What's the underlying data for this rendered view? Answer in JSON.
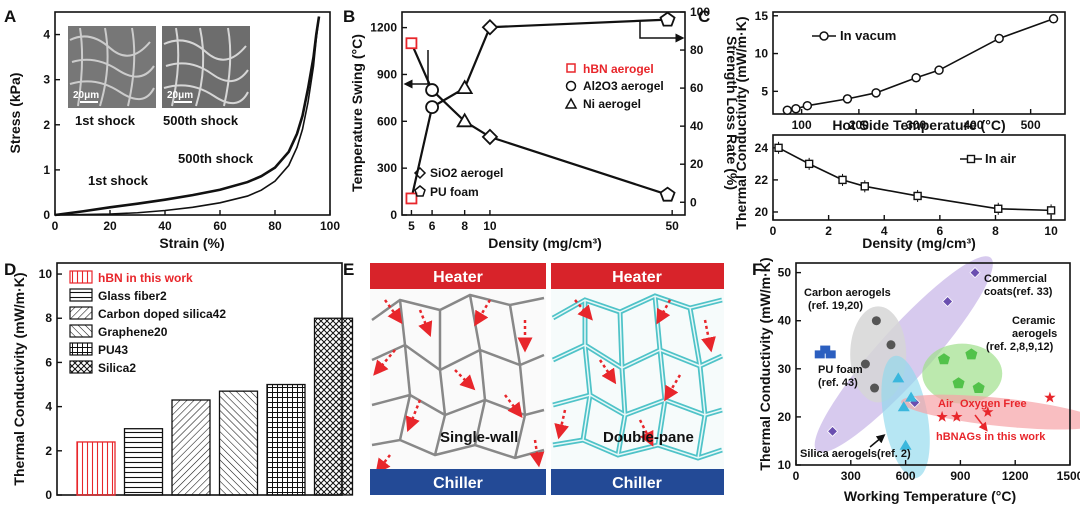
{
  "chart_data": [
    {
      "panel": "A",
      "type": "line",
      "xlabel": "Strain (%)",
      "ylabel": "Stress (kPa)",
      "xlim": [
        0,
        100
      ],
      "ylim": [
        0,
        4.5
      ],
      "xticks": [
        0,
        20,
        40,
        60,
        80,
        100
      ],
      "yticks": [
        0,
        1,
        2,
        3,
        4
      ],
      "series": [
        {
          "name": "1st shock",
          "x": [
            0,
            10,
            20,
            30,
            40,
            50,
            60,
            70,
            75,
            80,
            85,
            88,
            90,
            92,
            94,
            95,
            96
          ],
          "y": [
            0,
            0.08,
            0.17,
            0.25,
            0.34,
            0.44,
            0.56,
            0.73,
            0.86,
            1.05,
            1.4,
            1.8,
            2.2,
            2.8,
            3.5,
            4.0,
            4.4
          ]
        },
        {
          "name": "500th shock",
          "x": [
            0,
            20,
            30,
            40,
            50,
            60,
            70,
            75,
            80,
            85,
            88,
            90,
            92,
            94,
            95,
            96
          ],
          "y": [
            0,
            0.02,
            0.05,
            0.1,
            0.17,
            0.27,
            0.42,
            0.55,
            0.75,
            1.1,
            1.5,
            1.9,
            2.5,
            3.3,
            3.9,
            4.4
          ]
        }
      ],
      "annotations": [
        "1st shock",
        "500th shock",
        "20μm",
        "20μm",
        "1st shock",
        "500th shock"
      ]
    },
    {
      "panel": "B",
      "type": "scatter",
      "xlabel": "Density (mg/cm³)",
      "ylabel": "Temperature Swing (°C)",
      "y2label": "Strength Loss Rate (%)",
      "xscale": "log",
      "xticks": [
        5,
        6,
        8,
        10,
        50
      ],
      "ylim": [
        0,
        1300
      ],
      "yticks": [
        0,
        300,
        600,
        900,
        1200
      ],
      "y2lim": [
        -6.7,
        100
      ],
      "y2ticks": [
        0,
        20,
        40,
        60,
        80,
        100
      ],
      "legend": [
        "hBN aerogel",
        "Al2O3 aerogel",
        "Ni aerogel",
        "SiO2 aerogel",
        "PU foam"
      ],
      "series": [
        {
          "name": "hBN aerogel",
          "x": [
            5
          ],
          "temperature": [
            1100
          ],
          "loss": [
            2
          ]
        },
        {
          "name": "Al2O3 aerogel",
          "x": [
            6
          ],
          "temperature": [
            800
          ],
          "loss": [
            50
          ]
        },
        {
          "name": "Ni aerogel",
          "x": [
            8
          ],
          "temperature": [
            600
          ],
          "loss": [
            60
          ]
        },
        {
          "name": "SiO2 aerogel",
          "x": [
            10
          ],
          "temperature": [
            500
          ],
          "loss": [
            92
          ]
        },
        {
          "name": "PU foam",
          "x": [
            48
          ],
          "temperature": [
            130
          ],
          "loss": [
            96
          ]
        }
      ]
    },
    {
      "panel": "C",
      "type": "line",
      "ylabel": "Thermal Conductivity (mW/m·K)",
      "top": {
        "name": "In vacum",
        "xlabel": "Hot Side Temperature (°C)",
        "xlim": [
          50,
          560
        ],
        "xticks": [
          100,
          200,
          300,
          400,
          500
        ],
        "ylim": [
          2,
          15.5
        ],
        "yticks": [
          5,
          10,
          15
        ],
        "x": [
          75,
          90,
          110,
          180,
          230,
          300,
          340,
          445,
          540
        ],
        "y": [
          2.5,
          2.7,
          3.1,
          4.0,
          4.8,
          6.8,
          7.8,
          12.0,
          14.6
        ]
      },
      "bottom": {
        "name": "In air",
        "xlabel": "Density (mg/cm³)",
        "xlim": [
          0,
          10.5
        ],
        "xticks": [
          0,
          2,
          4,
          6,
          8,
          10
        ],
        "ylim": [
          19.5,
          24.8
        ],
        "yticks": [
          20,
          22,
          24
        ],
        "x": [
          0.2,
          1.3,
          2.5,
          3.3,
          5.2,
          8.1,
          10
        ],
        "y": [
          24,
          23,
          22,
          21.6,
          21,
          20.2,
          20.1
        ]
      }
    },
    {
      "panel": "D",
      "type": "bar",
      "ylabel": "Thermal Conductivity (mW/m·K)",
      "ylim": [
        0,
        10.5
      ],
      "yticks": [
        0,
        2,
        4,
        6,
        8,
        10
      ],
      "categories": [
        "hBN in this work",
        "Glass fiber2",
        "Carbon doped silica42",
        "Graphene20",
        "PU43",
        "Silica2"
      ],
      "values": [
        2.4,
        3.0,
        4.3,
        4.7,
        5.0,
        8.0
      ]
    },
    {
      "panel": "F",
      "type": "scatter",
      "xlabel": "Working Temperature (°C)",
      "ylabel": "Thermal Conductivity (mW/m·K)",
      "xlim": [
        0,
        1500
      ],
      "xticks": [
        0,
        300,
        600,
        900,
        1200,
        1500
      ],
      "ylim": [
        10,
        52
      ],
      "yticks": [
        10,
        20,
        30,
        40,
        50
      ],
      "groups": [
        {
          "name": "Carbon aerogels (ref. 19,20)",
          "x": [
            380,
            440,
            520,
            430
          ],
          "y": [
            31,
            40,
            35,
            26
          ]
        },
        {
          "name": "Commercial coats(ref. 33)",
          "x": [
            200,
            650,
            830,
            980
          ],
          "y": [
            17,
            23,
            44,
            50
          ]
        },
        {
          "name": "Ceramic aerogels (ref. 2,8,9,12)",
          "x": [
            810,
            890,
            960,
            1000
          ],
          "y": [
            32,
            27,
            33,
            26
          ]
        },
        {
          "name": "PU foam (ref. 43)",
          "x": [
            130,
            160,
            190
          ],
          "y": [
            33,
            34,
            33
          ]
        },
        {
          "name": "Silica aerogels(ref. 2)",
          "x": [
            560,
            590,
            630,
            600
          ],
          "y": [
            28,
            22,
            24,
            14
          ]
        },
        {
          "name": "hBNAGs in this work",
          "x": [
            800,
            880,
            1050,
            1390
          ],
          "y": [
            20,
            20,
            21,
            24
          ]
        }
      ],
      "annotations": [
        "Carbon aerogels",
        "(ref. 19,20)",
        "Commercial",
        "coats(ref. 33)",
        "Ceramic",
        "aerogels",
        "(ref. 2,8,9,12)",
        "PU foam",
        "(ref. 43)",
        "Silica aerogels(ref. 2)",
        "Air",
        "Oxygen Free",
        "hBNAGs in this work"
      ]
    }
  ],
  "panels": {
    "A": {
      "letter": "A",
      "inset1": "1st shock",
      "inset2": "500th shock",
      "scale1": "20μm",
      "scale2": "20μm",
      "curve1": "1st shock",
      "curve2": "500th shock"
    },
    "B": {
      "letter": "B"
    },
    "C": {
      "letter": "C"
    },
    "D": {
      "letter": "D"
    },
    "E": {
      "letter": "E",
      "heater_left": "Heater",
      "heater_right": "Heater",
      "chiller_left": "Chiller",
      "chiller_right": "Chiller",
      "label_left": "Single-wall",
      "label_right": "Double-pane"
    },
    "F": {
      "letter": "F"
    }
  },
  "colors": {
    "red": "#e8262b",
    "cyan": "#4fc3c8",
    "heater": "#d8232a",
    "chiller": "#234a96",
    "purple": "#b79fe0",
    "green": "#52c24a",
    "blue": "#2b5fc0"
  }
}
